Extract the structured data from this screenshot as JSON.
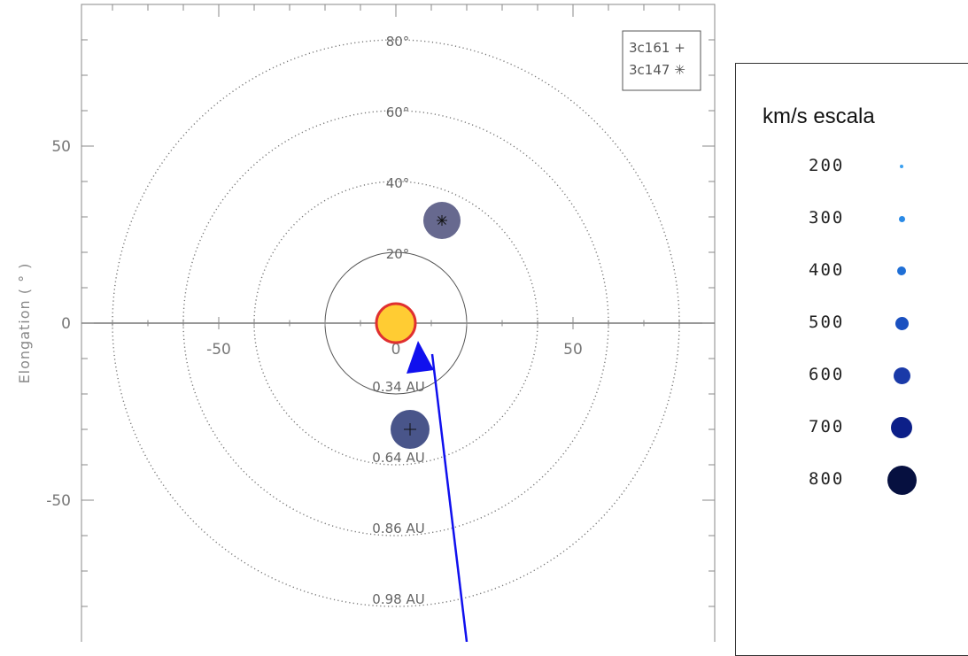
{
  "chart_data": {
    "type": "scatter",
    "title": "",
    "xlabel": "",
    "ylabel": "Elongation ( ° )",
    "xlim": [
      -88,
      88
    ],
    "ylim": [
      -88,
      88
    ],
    "x_ticks": [
      {
        "value": -50,
        "label": "-50"
      },
      {
        "value": 0,
        "label": "0"
      },
      {
        "value": 50,
        "label": "50"
      }
    ],
    "y_ticks": [
      {
        "value": 50,
        "label": "50"
      },
      {
        "value": 0,
        "label": "0"
      },
      {
        "value": -50,
        "label": "-50"
      }
    ],
    "rings": [
      {
        "radius": 20,
        "style": "solid",
        "top_label": "20°",
        "bottom_label": "0.34 AU"
      },
      {
        "radius": 40,
        "style": "dotted",
        "top_label": "40°",
        "bottom_label": "0.64 AU"
      },
      {
        "radius": 60,
        "style": "dotted",
        "top_label": "60°",
        "bottom_label": "0.86 AU"
      },
      {
        "radius": 80,
        "style": "dotted",
        "top_label": "80°",
        "bottom_label": "0.98 AU"
      }
    ],
    "sources": [
      {
        "name": "3c161",
        "marker": "+",
        "x": 4,
        "y": -30,
        "speed": 700,
        "color": "#3a4680"
      },
      {
        "name": "3c147",
        "marker": "*",
        "x": 13,
        "y": 29,
        "speed": 650,
        "color": "#5a5c85"
      }
    ],
    "sun": {
      "x": 0,
      "y": 0,
      "fill": "#ffcc33",
      "stroke": "#e03030"
    },
    "arrow": {
      "from": [
        19,
        -88
      ],
      "to": [
        7,
        -10
      ],
      "color": "#1010ee"
    },
    "legend": {
      "placement": "top-right",
      "entries": [
        {
          "label": "3c161",
          "symbol": "+"
        },
        {
          "label": "3c147",
          "symbol": "✳"
        }
      ]
    }
  },
  "scale": {
    "title": "km/s escala",
    "items": [
      {
        "value": "200",
        "color": "#3aa0f0"
      },
      {
        "value": "300",
        "color": "#2a8ae6"
      },
      {
        "value": "400",
        "color": "#1f6fd6"
      },
      {
        "value": "500",
        "color": "#1a50c0"
      },
      {
        "value": "600",
        "color": "#1a3aa8"
      },
      {
        "value": "700",
        "color": "#0c1f88"
      },
      {
        "value": "800",
        "color": "#061040"
      }
    ]
  }
}
